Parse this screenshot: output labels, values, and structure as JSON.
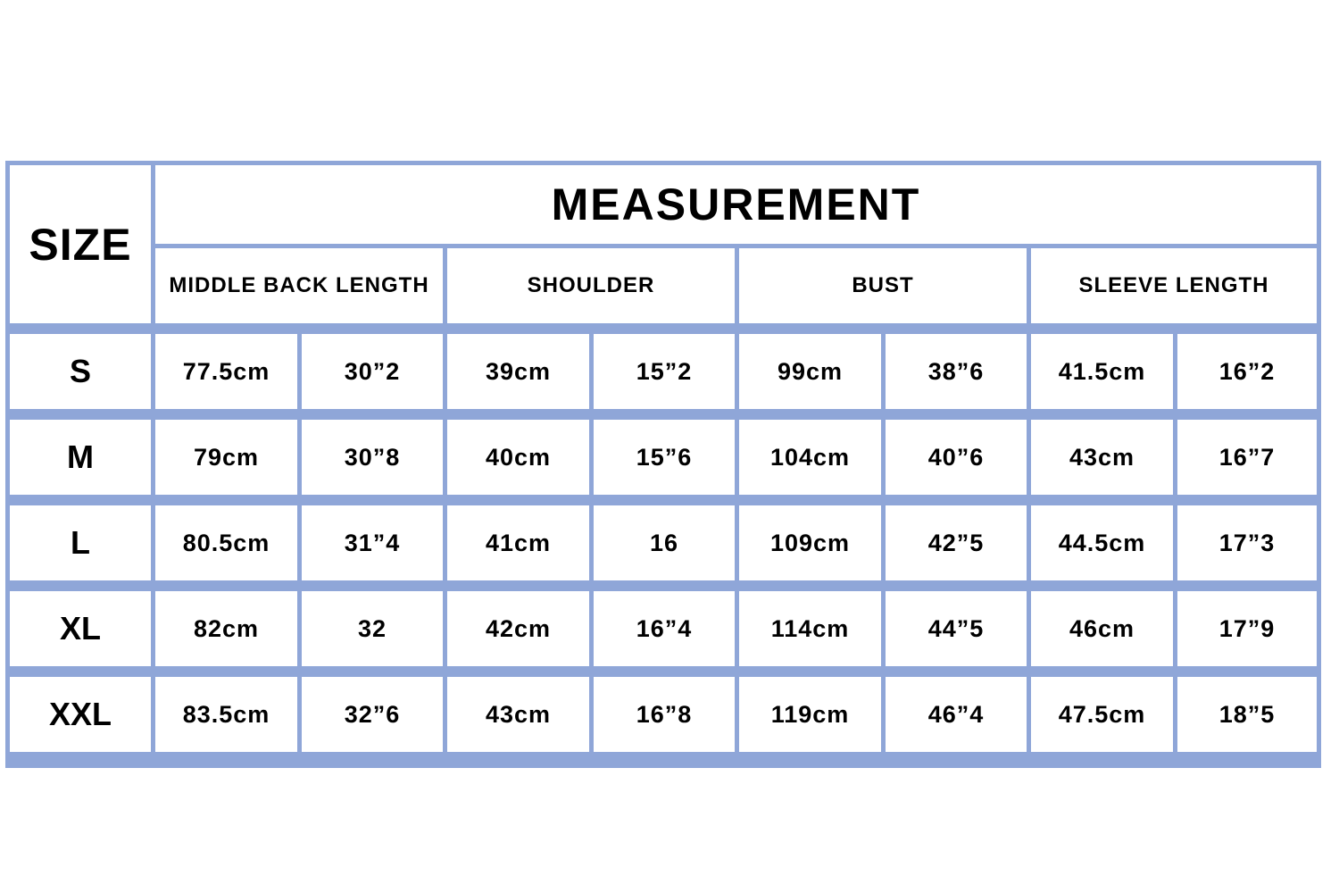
{
  "colors": {
    "border": "#8fa6d8",
    "cell_background": "#ffffff",
    "text": "#000000"
  },
  "table": {
    "size_header": "SIZE",
    "title": "MEASUREMENT",
    "columns": [
      "MIDDLE BACK LENGTH",
      "SHOULDER",
      "BUST",
      "SLEEVE LENGTH"
    ],
    "rows": [
      {
        "size": "S",
        "values": [
          "77.5cm",
          "30”2",
          "39cm",
          "15”2",
          "99cm",
          "38”6",
          "41.5cm",
          "16”2"
        ]
      },
      {
        "size": "M",
        "values": [
          "79cm",
          "30”8",
          "40cm",
          "15”6",
          "104cm",
          "40”6",
          "43cm",
          "16”7"
        ]
      },
      {
        "size": "L",
        "values": [
          "80.5cm",
          "31”4",
          "41cm",
          "16",
          "109cm",
          "42”5",
          "44.5cm",
          "17”3"
        ]
      },
      {
        "size": "XL",
        "values": [
          "82cm",
          "32",
          "42cm",
          "16”4",
          "114cm",
          "44”5",
          "46cm",
          "17”9"
        ]
      },
      {
        "size": "XXL",
        "values": [
          "83.5cm",
          "32”6",
          "43cm",
          "16”8",
          "119cm",
          "46”4",
          "47.5cm",
          "18”5"
        ]
      }
    ]
  }
}
